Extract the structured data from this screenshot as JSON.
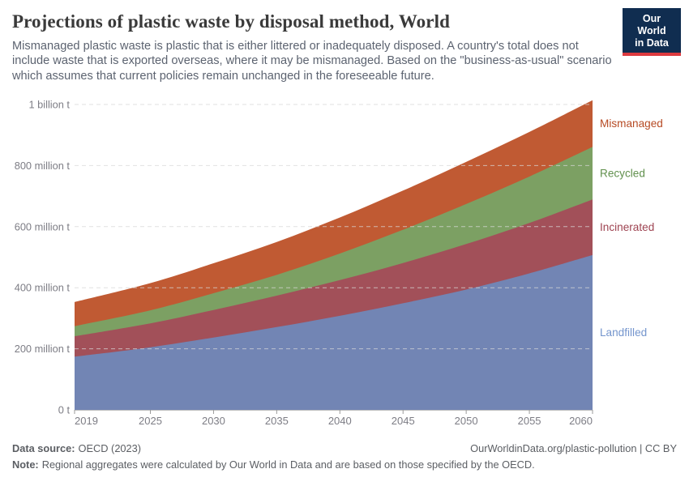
{
  "header": {
    "title": "Projections of plastic waste by disposal method, World",
    "subtitle": "Mismanaged plastic waste is plastic that is either littered or inadequately disposed. A country's total does not include waste that is exported overseas, where it may be mismanaged. Based on the \"business-as-usual\" scenario which assumes that current policies remain unchanged in the foreseeable future.",
    "logo": {
      "line1": "Our World",
      "line2": "in Data",
      "bg_color": "#102D50",
      "accent_color": "#DC3A3F"
    }
  },
  "chart_data": {
    "type": "area",
    "stacked": true,
    "title": "Projections of plastic waste by disposal method, World",
    "xlabel": "",
    "ylabel": "",
    "unit": "million tonnes",
    "ylim": [
      0,
      1000
    ],
    "grid": "horizontal dashed",
    "legend_position": "right",
    "x": [
      2019,
      2025,
      2030,
      2035,
      2040,
      2045,
      2050,
      2055,
      2060
    ],
    "x_tick_labels": [
      "2019",
      "2025",
      "2030",
      "2035",
      "2040",
      "2045",
      "2050",
      "2055",
      "2060"
    ],
    "y_ticks": [
      {
        "value": 0,
        "label": "0 t"
      },
      {
        "value": 200,
        "label": "200 million t"
      },
      {
        "value": 400,
        "label": "400 million t"
      },
      {
        "value": 600,
        "label": "600 million t"
      },
      {
        "value": 800,
        "label": "800 million t"
      },
      {
        "value": 1000,
        "label": "1 billion t"
      }
    ],
    "series": [
      {
        "name": "Landfilled",
        "color": "#7285B4",
        "label_color": "#7495CD",
        "values": [
          174,
          205,
          237,
          271,
          308,
          349,
          394,
          447,
          507
        ]
      },
      {
        "name": "Incinerated",
        "color": "#A25059",
        "label_color": "#9E4351",
        "values": [
          67,
          78,
          90,
          103,
          117,
          132,
          149,
          165,
          182
        ]
      },
      {
        "name": "Recycled",
        "color": "#7CA063",
        "label_color": "#61904D",
        "values": [
          33,
          43,
          55,
          68,
          87,
          109,
          131,
          152,
          172
        ]
      },
      {
        "name": "Mismanaged",
        "color": "#C05A33",
        "label_color": "#B64A23",
        "values": [
          79,
          89,
          98,
          108,
          118,
          128,
          138,
          146,
          153
        ]
      }
    ],
    "totals": [
      353,
      415,
      480,
      550,
      630,
      718,
      812,
      910,
      1014
    ]
  },
  "footer": {
    "data_source_label": "Data source:",
    "data_source": "OECD (2023)",
    "link": "OurWorldinData.org/plastic-pollution | CC BY",
    "note_label": "Note:",
    "note": "Regional aggregates were calculated by Our World in Data and are based on those specified by the OECD."
  }
}
